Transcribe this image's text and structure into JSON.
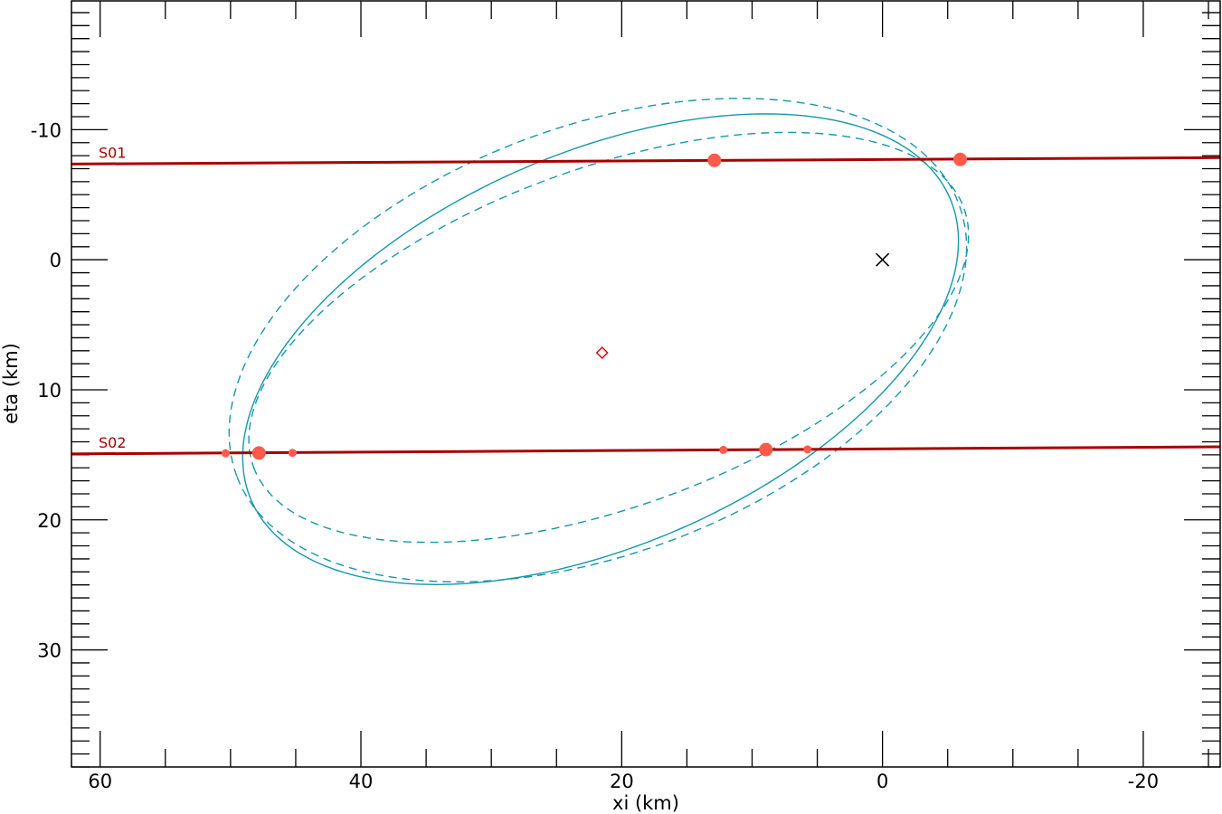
{
  "chart_data": {
    "type": "scatter",
    "xlabel": "xi (km)",
    "ylabel": "eta (km)",
    "xlim": [
      62.2,
      -25.9
    ],
    "ylim": [
      -19.9,
      39.0
    ],
    "y_inverted": true,
    "x_inverted": true,
    "grid": false,
    "x_ticks": [
      "60",
      "40",
      "20",
      "0",
      "-20"
    ],
    "x_tick_values": [
      60,
      40,
      20,
      0,
      -20
    ],
    "x_minor_step": 5,
    "y_ticks": [
      "-10",
      "0",
      "10",
      "20",
      "30"
    ],
    "y_tick_values": [
      -10,
      0,
      10,
      20,
      30
    ],
    "y_minor_step": 1,
    "colors": {
      "chord": "#a80000",
      "point": "#ff5a4c",
      "ellipse": "#1597a8",
      "center": "#dd0000",
      "origin": "#000000"
    },
    "chords": [
      {
        "name": "S01",
        "from": [
          62.2,
          -7.36
        ],
        "to": [
          -25.9,
          -7.85
        ],
        "points": [
          {
            "xi": 12.89,
            "eta": -7.64,
            "size": "large"
          },
          {
            "xi": -5.96,
            "eta": -7.71,
            "size": "large"
          }
        ]
      },
      {
        "name": "S02",
        "from": [
          62.2,
          14.93
        ],
        "to": [
          -25.9,
          14.38
        ],
        "points": [
          {
            "xi": 50.38,
            "eta": 14.88,
            "size": "small"
          },
          {
            "xi": 47.82,
            "eta": 14.86,
            "size": "large"
          },
          {
            "xi": 45.25,
            "eta": 14.85,
            "size": "small"
          },
          {
            "xi": 12.2,
            "eta": 14.62,
            "size": "small"
          },
          {
            "xi": 8.94,
            "eta": 14.6,
            "size": "large"
          },
          {
            "xi": 5.75,
            "eta": 14.58,
            "size": "small"
          }
        ]
      }
    ],
    "ellipses": [
      {
        "style": "solid",
        "center": [
          21.62,
          6.88
        ],
        "semi_major": 29.2,
        "semi_minor": 15.1,
        "angle_deg": 23.5
      },
      {
        "style": "dashed",
        "center": [
          21.83,
          6.18
        ],
        "semi_major": 29.6,
        "semi_minor": 16.4,
        "angle_deg": 20.8
      },
      {
        "style": "dashed",
        "center": [
          21.0,
          5.97
        ],
        "semi_major": 29.0,
        "semi_minor": 13.0,
        "angle_deg": 20.1
      }
    ],
    "center_marker": {
      "xi": 21.5,
      "eta": 7.15,
      "marker": "diamond"
    },
    "origin_marker": {
      "xi": 0,
      "eta": 0,
      "marker": "x"
    }
  }
}
